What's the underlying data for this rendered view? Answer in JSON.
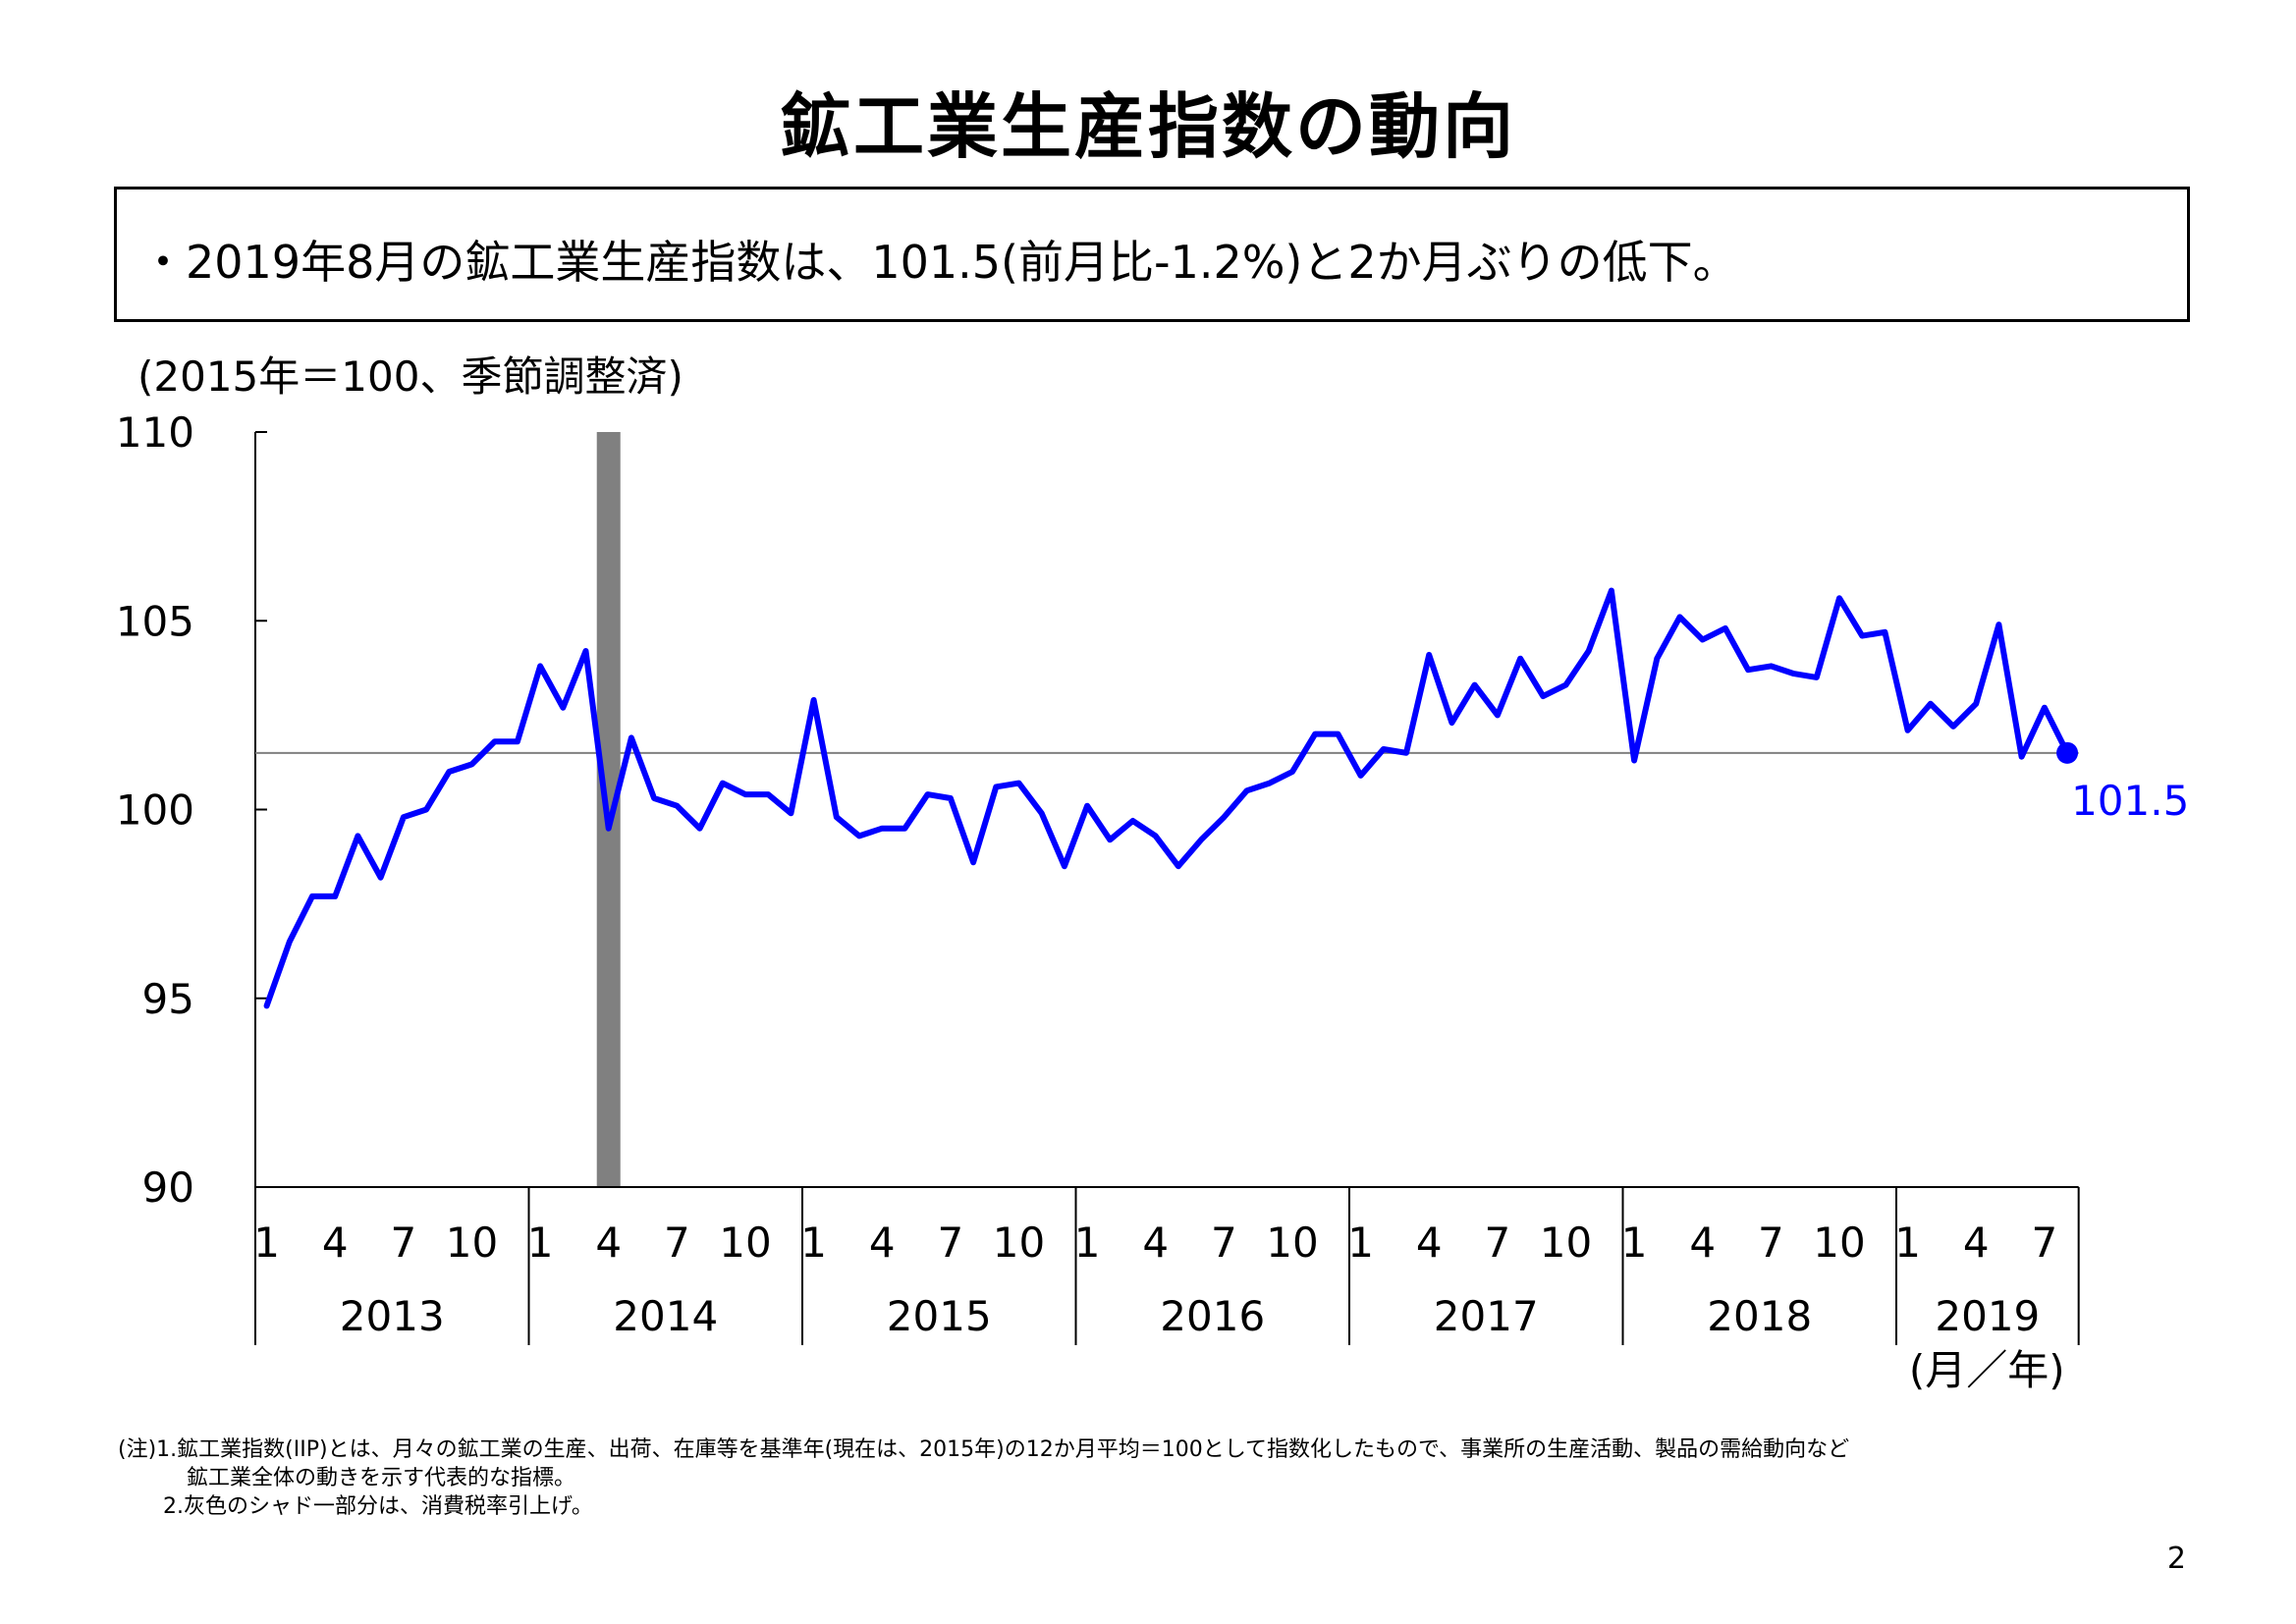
{
  "title": "鉱工業生産指数の動向",
  "summary": "・2019年8月の鉱工業生産指数は、101.5(前月比-1.2%)と2か月ぶりの低下。",
  "unit_note": "(2015年＝100、季節調整済)",
  "axis_unit": "(月／年)",
  "footnotes": {
    "line1": "(注)1.鉱工業指数(IIP)とは、月々の鉱工業の生産、出荷、在庫等を基準年(現在は、2015年)の12か月平均＝100として指数化したもので、事業所の生産活動、製品の需給動向など",
    "line2": "鉱工業全体の動きを示す代表的な指標。",
    "line3": "2.灰色のシャド一部分は、消費税率引上げ。"
  },
  "page_number": "2",
  "colors": {
    "series": "#0000ff",
    "shade": "#808080",
    "reference_line": "#808080",
    "axis": "#000000"
  },
  "chart_data": {
    "type": "line",
    "title": "",
    "ylabel": "(2015年＝100、季節調整済)",
    "xlabel": "(月／年)",
    "ylim": [
      90,
      110
    ],
    "yticks": [
      90,
      95,
      100,
      105,
      110
    ],
    "month_tick_labels": [
      "1",
      "4",
      "7",
      "10"
    ],
    "years": [
      "2013",
      "2014",
      "2015",
      "2016",
      "2017",
      "2018",
      "2019"
    ],
    "shade": {
      "year": "2014",
      "month": 4
    },
    "reference_value": 101.5,
    "last_label": "101.5",
    "series": [
      {
        "values": [
          94.8,
          96.5,
          97.7,
          97.7,
          99.3,
          98.2,
          99.8,
          100.0,
          101.0,
          101.2,
          101.8,
          101.8,
          103.8,
          102.7,
          104.2,
          99.5,
          101.9,
          100.3,
          100.1,
          99.5,
          100.7,
          100.4,
          100.4,
          99.9,
          102.9,
          99.8,
          99.3,
          99.5,
          99.5,
          100.4,
          100.3,
          98.6,
          100.6,
          100.7,
          99.9,
          98.5,
          100.1,
          99.2,
          99.7,
          99.3,
          98.5,
          99.2,
          99.8,
          100.5,
          100.7,
          101.0,
          102.0,
          102.0,
          100.9,
          101.6,
          101.5,
          104.1,
          102.3,
          103.3,
          102.5,
          104.0,
          103.0,
          103.3,
          104.2,
          105.8,
          101.3,
          104.0,
          105.1,
          104.5,
          104.8,
          103.7,
          103.8,
          103.6,
          103.5,
          105.6,
          104.6,
          104.7,
          102.1,
          102.8,
          102.2,
          102.8,
          104.9,
          101.4,
          102.7,
          101.5
        ]
      }
    ]
  }
}
